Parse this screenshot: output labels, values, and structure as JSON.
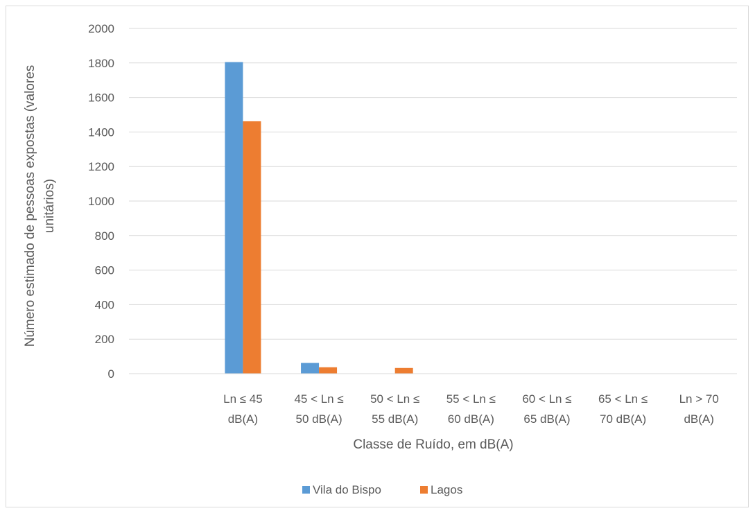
{
  "chart_data": {
    "type": "bar",
    "title": "",
    "xlabel": "Classe de Ruído, em dB(A)",
    "ylabel": "Número estimado de pessoas expostas (valores unitários)",
    "ylabel_lines": [
      "Número estimado de pessoas expostas (valores",
      "unitários)"
    ],
    "ylim": [
      0,
      2000
    ],
    "yticks": [
      0,
      200,
      400,
      600,
      800,
      1000,
      1200,
      1400,
      1600,
      1800,
      2000
    ],
    "grid": true,
    "legend_position": "bottom",
    "categories": [
      {
        "lines": [
          "",
          ""
        ],
        "label": ""
      },
      {
        "lines": [
          "Ln ≤ 45",
          "dB(A)"
        ],
        "label": "Ln ≤ 45 dB(A)"
      },
      {
        "lines": [
          "45 < Ln ≤",
          "50 dB(A)"
        ],
        "label": "45 < Ln ≤ 50 dB(A)"
      },
      {
        "lines": [
          "50 < Ln ≤",
          "55 dB(A)"
        ],
        "label": "50 < Ln ≤ 55 dB(A)"
      },
      {
        "lines": [
          "55 < Ln ≤",
          "60 dB(A)"
        ],
        "label": "55 < Ln ≤ 60 dB(A)"
      },
      {
        "lines": [
          "60 < Ln ≤",
          "65 dB(A)"
        ],
        "label": "60 < Ln ≤ 65 dB(A)"
      },
      {
        "lines": [
          "65 < Ln ≤",
          "70 dB(A)"
        ],
        "label": "65 < Ln ≤ 70 dB(A)"
      },
      {
        "lines": [
          "Ln > 70",
          "dB(A)"
        ],
        "label": "Ln > 70 dB(A)"
      }
    ],
    "series": [
      {
        "name": "Vila do Bispo",
        "color": "#5b9bd5",
        "values": [
          0,
          1805,
          62,
          0,
          0,
          0,
          0,
          0
        ]
      },
      {
        "name": "Lagos",
        "color": "#ed7d31",
        "values": [
          0,
          1462,
          37,
          33,
          0,
          0,
          0,
          0
        ]
      }
    ]
  }
}
